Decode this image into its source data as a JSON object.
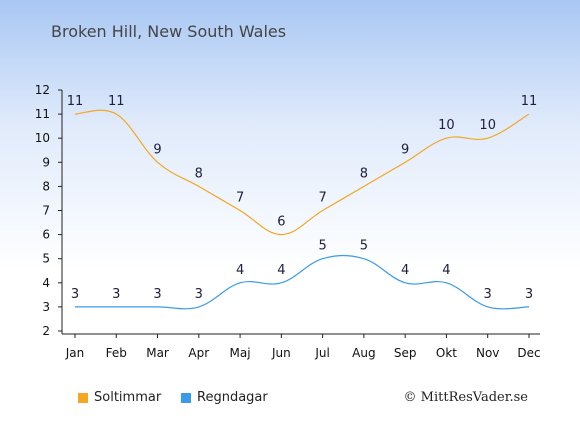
{
  "chart_data": {
    "type": "line",
    "title": "Broken Hill, New South Wales",
    "categories": [
      "Jan",
      "Feb",
      "Mar",
      "Apr",
      "Maj",
      "Jun",
      "Jul",
      "Aug",
      "Sep",
      "Okt",
      "Nov",
      "Dec"
    ],
    "ylim": [
      2,
      12
    ],
    "yticks": [
      2,
      3,
      4,
      5,
      6,
      7,
      8,
      9,
      10,
      11,
      12
    ],
    "legend_position": "bottom-left",
    "grid": false,
    "series": [
      {
        "name": "Soltimmar",
        "color": "#f5a623",
        "values": [
          11,
          11,
          9,
          8,
          7,
          6,
          7,
          8,
          9,
          10,
          10,
          11
        ]
      },
      {
        "name": "Regndagar",
        "color": "#3a9be8",
        "values": [
          3,
          3,
          3,
          3,
          4,
          4,
          5,
          5,
          4,
          4,
          3,
          3
        ]
      }
    ]
  },
  "copyright": "© MittResVader.se"
}
